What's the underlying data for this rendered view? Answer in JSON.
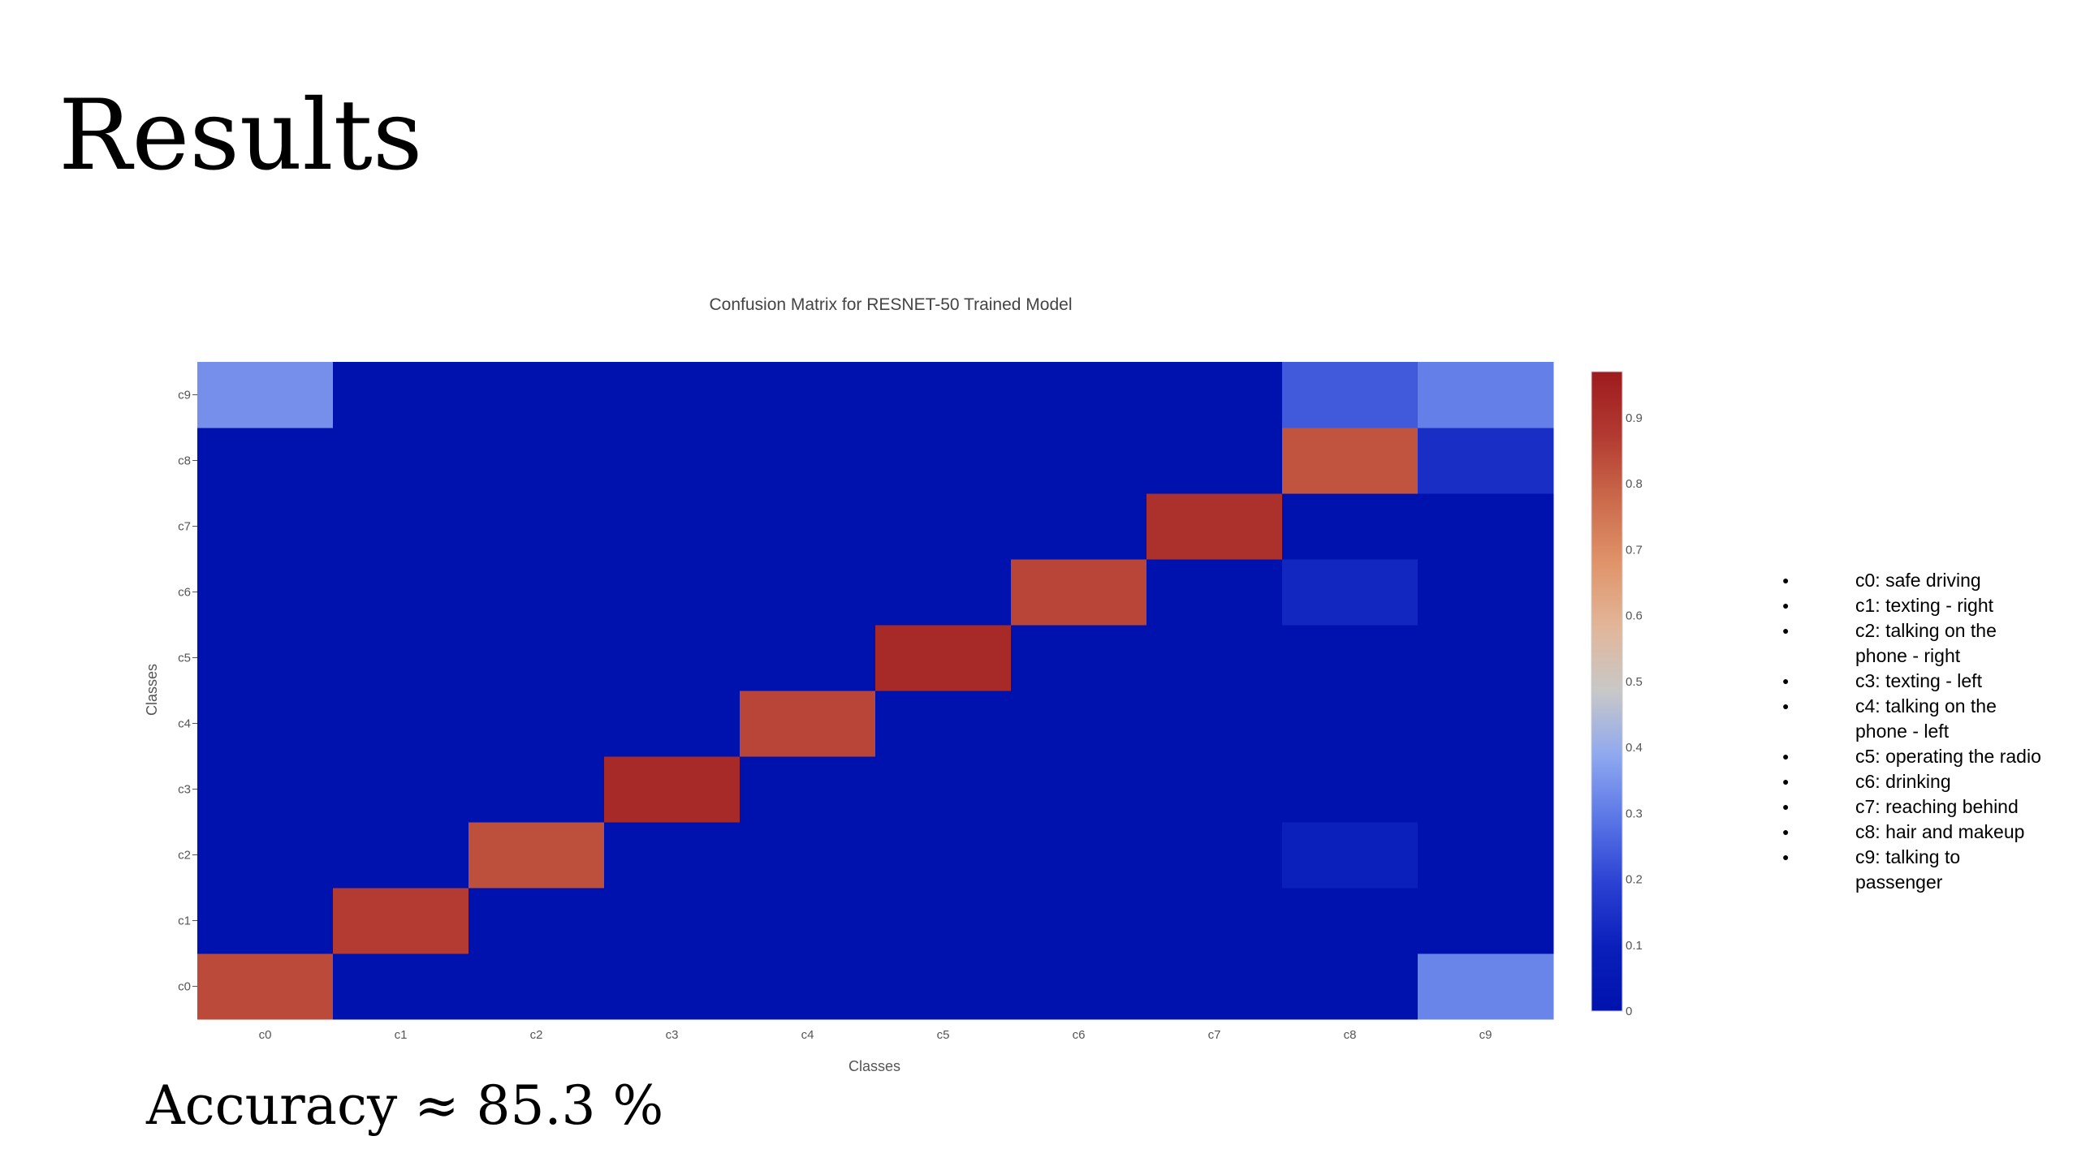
{
  "slide": {
    "title": "Results",
    "accuracy": "Accuracy ≈ 85.3 %"
  },
  "legend_items": [
    "c0: safe driving",
    "c1: texting - right",
    "c2: talking on the phone - right",
    "c3: texting - left",
    "c4: talking on the phone - left",
    "c5: operating the radio",
    "c6: drinking",
    "c7: reaching behind",
    "c8: hair and makeup",
    "c9: talking to passenger"
  ],
  "chart_data": {
    "type": "heatmap",
    "title": "Confusion Matrix for RESNET-50 Trained Model",
    "xlabel": "Classes",
    "ylabel": "Classes",
    "x": [
      "c0",
      "c1",
      "c2",
      "c3",
      "c4",
      "c5",
      "c6",
      "c7",
      "c8",
      "c9"
    ],
    "y": [
      "c0",
      "c1",
      "c2",
      "c3",
      "c4",
      "c5",
      "c6",
      "c7",
      "c8",
      "c9"
    ],
    "z": [
      [
        0.84,
        0.0,
        0.0,
        0.0,
        0.0,
        0.0,
        0.0,
        0.0,
        0.0,
        0.32
      ],
      [
        0.0,
        0.87,
        0.0,
        0.0,
        0.0,
        0.0,
        0.0,
        0.0,
        0.0,
        0.0
      ],
      [
        0.0,
        0.0,
        0.83,
        0.0,
        0.0,
        0.0,
        0.0,
        0.0,
        0.1,
        0.0
      ],
      [
        0.0,
        0.0,
        0.0,
        0.92,
        0.0,
        0.0,
        0.0,
        0.0,
        0.0,
        0.0
      ],
      [
        0.0,
        0.0,
        0.0,
        0.0,
        0.85,
        0.0,
        0.0,
        0.0,
        0.0,
        0.0
      ],
      [
        0.0,
        0.0,
        0.0,
        0.0,
        0.0,
        0.92,
        0.0,
        0.0,
        0.0,
        0.0
      ],
      [
        0.0,
        0.0,
        0.0,
        0.0,
        0.0,
        0.0,
        0.85,
        0.0,
        0.12,
        0.0
      ],
      [
        0.0,
        0.0,
        0.0,
        0.0,
        0.0,
        0.0,
        0.0,
        0.9,
        0.0,
        0.0
      ],
      [
        0.0,
        0.0,
        0.0,
        0.0,
        0.0,
        0.0,
        0.0,
        0.0,
        0.82,
        0.14
      ],
      [
        0.34,
        0.0,
        0.0,
        0.0,
        0.0,
        0.0,
        0.0,
        0.0,
        0.24,
        0.31
      ]
    ],
    "zmin": 0,
    "zmax": 0.97,
    "colorbar_ticks": [
      0,
      0.1,
      0.2,
      0.3,
      0.4,
      0.5,
      0.6,
      0.7,
      0.8,
      0.9
    ],
    "colorbar_labels": [
      "0",
      "0.1",
      "0.2",
      "0.3",
      "0.4",
      "0.5",
      "0.6",
      "0.7",
      "0.8",
      "0.9"
    ],
    "colorscale": [
      [
        0.0,
        "#0012ad"
      ],
      [
        0.1,
        "#0a1fba"
      ],
      [
        0.2,
        "#2b41d3"
      ],
      [
        0.3,
        "#5a76e6"
      ],
      [
        0.4,
        "#8fa8f0"
      ],
      [
        0.5,
        "#c8c8c8"
      ],
      [
        0.6,
        "#e2b69a"
      ],
      [
        0.7,
        "#e0946a"
      ],
      [
        0.8,
        "#cb6a4b"
      ],
      [
        0.9,
        "#b23a31"
      ],
      [
        1.0,
        "#9e1a1e"
      ]
    ],
    "colors": {
      "axis_text": "#555555",
      "title_text": "#444444"
    }
  }
}
